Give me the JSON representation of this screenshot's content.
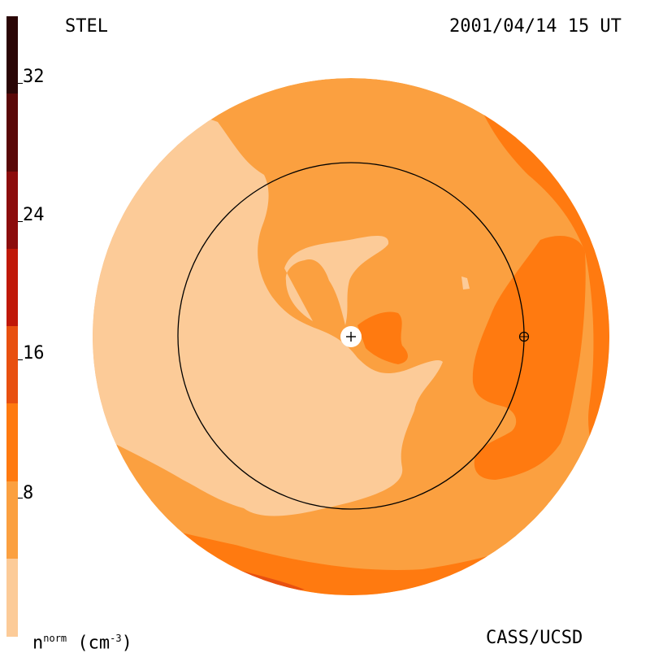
{
  "header": {
    "instrument": "STEL",
    "timestamp": "2001/04/14 15 UT"
  },
  "footer": {
    "quantity_prefix": "n",
    "quantity_sup": "norm",
    "quantity_unit": "(cm",
    "quantity_unit_sup": "-3",
    "quantity_unit_close": ")",
    "credit": "CASS/UCSD"
  },
  "colorbar": {
    "ticks": [
      "32",
      "24",
      "16",
      "8"
    ],
    "colors": [
      "#2a0606",
      "#5a0808",
      "#8c0c0c",
      "#c01808",
      "#e85010",
      "#ff7a10",
      "#fba040",
      "#fccb98"
    ]
  },
  "palette": {
    "background_disk": "#fba040",
    "light_region": "#fccb98",
    "dense_region": "#ff7a10",
    "denser_region": "#e85010"
  },
  "markers": {
    "sun_symbol": "+",
    "earth_symbol": "⊕"
  }
}
